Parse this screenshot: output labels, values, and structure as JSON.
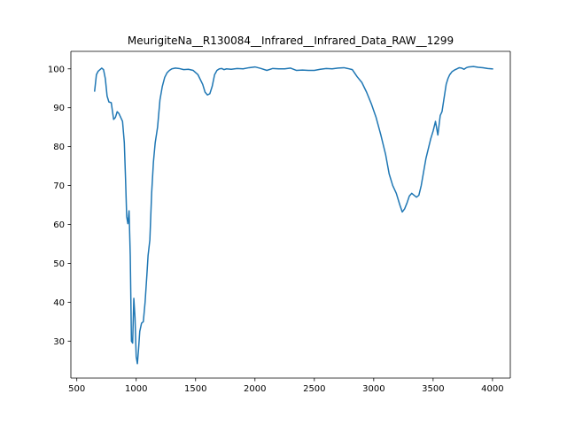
{
  "chart_data": {
    "type": "line",
    "title": "MeurigiteNa__R130084__Infrared__Infrared_Data_RAW__1299",
    "xlabel": "",
    "ylabel": "",
    "xlim": [
      450,
      4150
    ],
    "ylim": [
      20.5,
      104.5
    ],
    "xticks": [
      500,
      1000,
      1500,
      2000,
      2500,
      3000,
      3500,
      4000
    ],
    "yticks": [
      30,
      40,
      50,
      60,
      70,
      80,
      90,
      100
    ],
    "grid": false,
    "legend": "none",
    "series": [
      {
        "color": "#1f77b4",
        "x": [
          650,
          665,
          680,
          695,
          710,
          725,
          740,
          755,
          770,
          790,
          810,
          825,
          840,
          855,
          870,
          885,
          900,
          910,
          920,
          930,
          940,
          950,
          960,
          970,
          980,
          990,
          1000,
          1010,
          1020,
          1030,
          1045,
          1060,
          1075,
          1090,
          1100,
          1115,
          1130,
          1145,
          1160,
          1180,
          1200,
          1220,
          1240,
          1260,
          1280,
          1300,
          1330,
          1360,
          1400,
          1440,
          1480,
          1520,
          1560,
          1580,
          1600,
          1620,
          1640,
          1660,
          1680,
          1700,
          1720,
          1740,
          1760,
          1800,
          1850,
          1900,
          1950,
          2000,
          2050,
          2100,
          2150,
          2200,
          2250,
          2300,
          2350,
          2400,
          2450,
          2500,
          2550,
          2600,
          2650,
          2700,
          2750,
          2780,
          2820,
          2860,
          2900,
          2940,
          2980,
          3020,
          3060,
          3100,
          3130,
          3160,
          3190,
          3220,
          3240,
          3260,
          3280,
          3300,
          3320,
          3340,
          3360,
          3380,
          3400,
          3420,
          3440,
          3460,
          3480,
          3500,
          3520,
          3540,
          3560,
          3575,
          3590,
          3600,
          3610,
          3625,
          3640,
          3660,
          3680,
          3700,
          3720,
          3740,
          3760,
          3780,
          3800,
          3840,
          3880,
          3920,
          3960,
          4000
        ],
        "y": [
          94.3,
          98.5,
          99.4,
          99.8,
          100.2,
          99.8,
          97.5,
          93.0,
          91.5,
          91.3,
          87.0,
          87.5,
          89.0,
          88.5,
          87.5,
          86.5,
          81.0,
          72.0,
          62.0,
          60.2,
          63.5,
          52.0,
          30.0,
          29.5,
          41.0,
          36.0,
          26.0,
          24.2,
          28.0,
          32.5,
          34.6,
          35.0,
          40.0,
          47.0,
          52.0,
          56.0,
          68.0,
          76.0,
          81.0,
          85.0,
          92.0,
          95.5,
          97.8,
          99.0,
          99.6,
          100.0,
          100.2,
          100.1,
          99.8,
          99.9,
          99.6,
          98.5,
          96.0,
          94.0,
          93.3,
          93.6,
          95.5,
          98.5,
          99.6,
          100.0,
          100.1,
          99.8,
          100.0,
          99.9,
          100.1,
          100.0,
          100.3,
          100.5,
          100.1,
          99.6,
          100.1,
          100.0,
          100.0,
          100.2,
          99.6,
          99.7,
          99.6,
          99.6,
          99.9,
          100.1,
          100.0,
          100.2,
          100.3,
          100.1,
          99.8,
          98.0,
          96.5,
          94.0,
          91.0,
          87.5,
          83.0,
          78.0,
          73.0,
          70.0,
          68.0,
          65.0,
          63.2,
          64.0,
          65.5,
          67.3,
          68.0,
          67.5,
          67.0,
          67.5,
          70.0,
          73.5,
          77.0,
          79.5,
          82.0,
          84.0,
          86.5,
          83.0,
          88.0,
          89.0,
          92.0,
          94.0,
          96.0,
          97.5,
          98.5,
          99.3,
          99.7,
          100.0,
          100.3,
          100.2,
          99.9,
          100.3,
          100.5,
          100.6,
          100.4,
          100.3,
          100.1,
          100.0
        ]
      }
    ]
  }
}
